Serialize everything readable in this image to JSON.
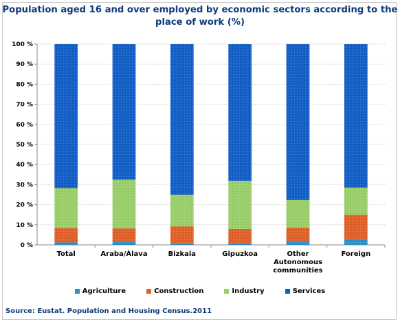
{
  "chart_data": {
    "type": "bar",
    "stacked": true,
    "title": "Population aged 16 and over employed by economic sectors according to the\nplace of work (%)",
    "categories": [
      "Total",
      "Araba/Álava",
      "Bizkaia",
      "Gipuzkoa",
      "Other\nAutonomous\ncommunities",
      "Foreign"
    ],
    "series": [
      {
        "name": "Agriculture",
        "color": "#2e8fcb",
        "values": [
          1.2,
          1.8,
          0.8,
          0.9,
          2.0,
          2.8
        ]
      },
      {
        "name": "Construction",
        "color": "#e0622a",
        "values": [
          7.3,
          6.4,
          8.4,
          7.0,
          6.6,
          12.2
        ]
      },
      {
        "name": "Industry",
        "color": "#9bcf6b",
        "values": [
          19.8,
          24.3,
          15.8,
          24.0,
          13.7,
          13.5
        ]
      },
      {
        "name": "Services",
        "color": "#1560c6",
        "values": [
          71.7,
          67.5,
          75.0,
          68.1,
          77.7,
          71.5
        ]
      }
    ],
    "ylim": [
      0,
      100
    ],
    "yticks": [
      "0 %",
      "10 %",
      "20 %",
      "30 %",
      "40 %",
      "50 %",
      "60 %",
      "70 %",
      "80 %",
      "90 %",
      "100 %"
    ],
    "ytick_values": [
      0,
      10,
      20,
      30,
      40,
      50,
      60,
      70,
      80,
      90,
      100
    ],
    "grid": true,
    "legend_position": "bottom",
    "source": "Source: Eustat. Population and Housing Census.2011"
  }
}
